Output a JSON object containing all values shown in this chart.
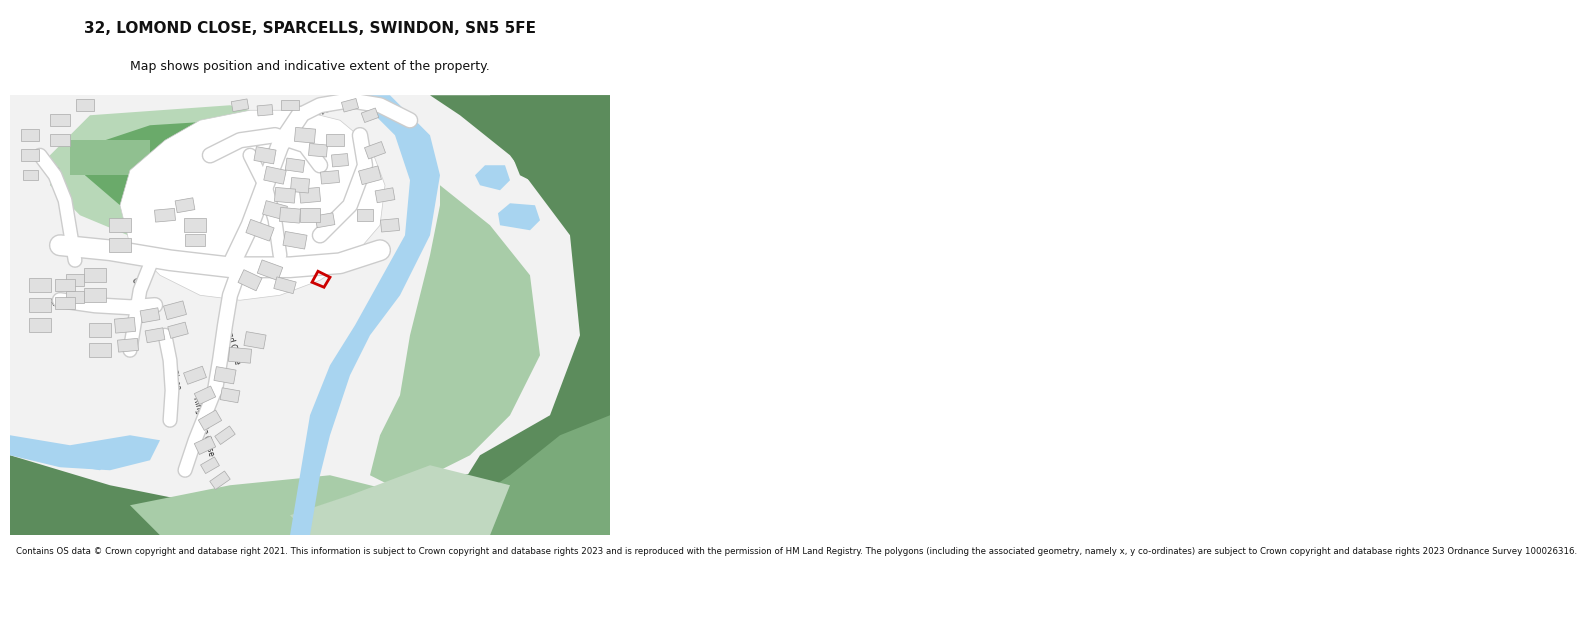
{
  "title_line1": "32, LOMOND CLOSE, SPARCELLS, SWINDON, SN5 5FE",
  "title_line2": "Map shows position and indicative extent of the property.",
  "footer": "Contains OS data © Crown copyright and database right 2021. This information is subject to Crown copyright and database rights 2023 and is reproduced with the permission of HM Land Registry. The polygons (including the associated geometry, namely x, y co-ordinates) are subject to Crown copyright and database rights 2023 Ordnance Survey 100026316.",
  "bg_color": "#ffffff",
  "road_color": "#ffffff",
  "road_edge_color": "#cccccc",
  "building_color": "#e0e0e0",
  "building_edge": "#aaaaaa",
  "park_light": "#b8d8b8",
  "park_dark": "#6aaa6a",
  "water_color": "#a8d4f0",
  "green_dark": "#5c8c5c",
  "green_mid": "#7aaa7a",
  "green_light": "#a8cca8",
  "highlight_color": "#cc0000",
  "text_color": "#222222"
}
